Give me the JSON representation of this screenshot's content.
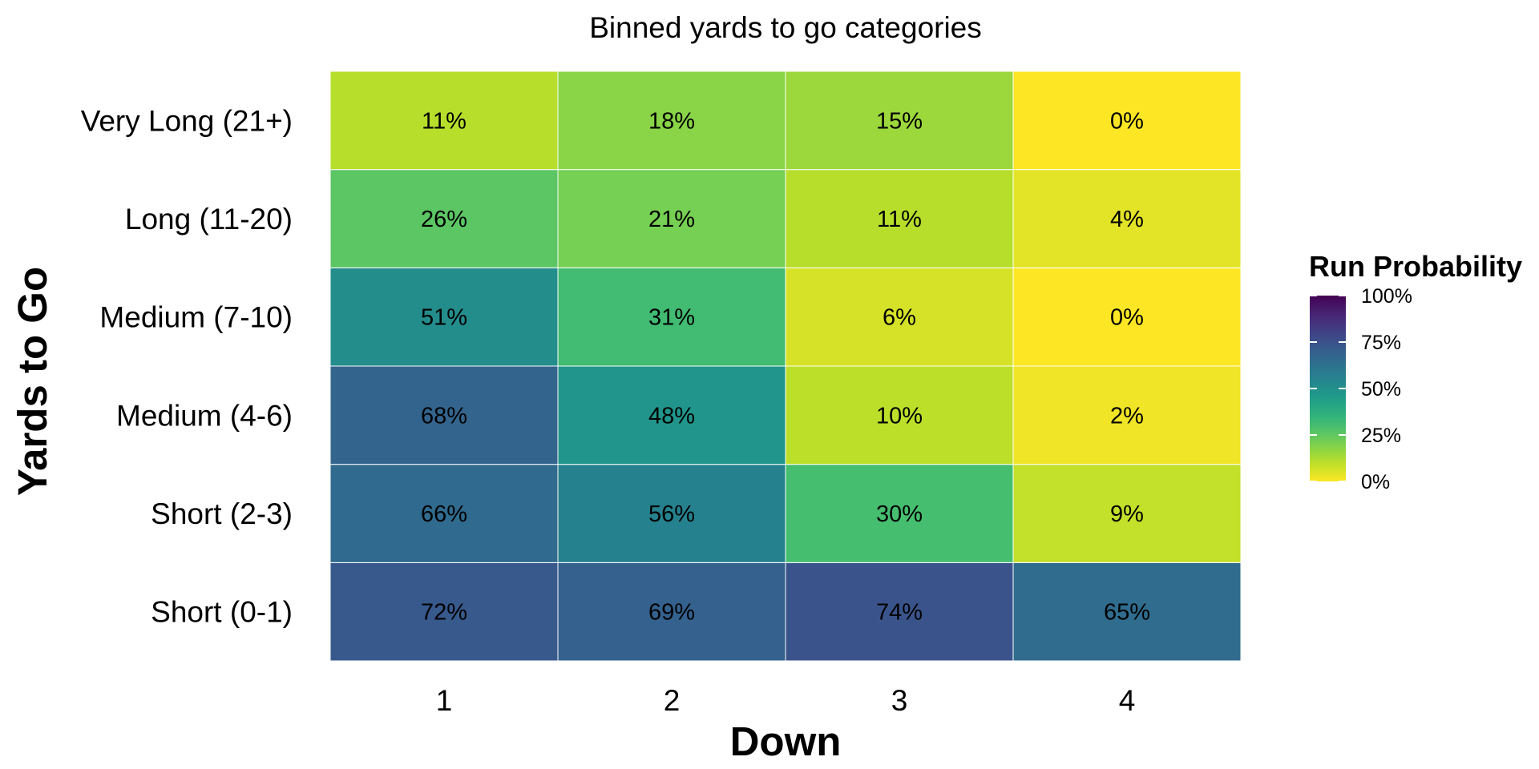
{
  "chart_data": {
    "type": "heatmap",
    "title": "Binned yards to go categories",
    "xlabel": "Down",
    "ylabel": "Yards to Go",
    "x_categories": [
      "1",
      "2",
      "3",
      "4"
    ],
    "y_categories": [
      "Short (0-1)",
      "Short (2-3)",
      "Medium (4-6)",
      "Medium (7-10)",
      "Long (11-20)",
      "Very Long (21+)"
    ],
    "values": [
      [
        72,
        69,
        74,
        65
      ],
      [
        66,
        56,
        30,
        9
      ],
      [
        68,
        48,
        10,
        2
      ],
      [
        51,
        31,
        6,
        0
      ],
      [
        26,
        21,
        11,
        4
      ],
      [
        11,
        18,
        15,
        0
      ]
    ],
    "value_suffix": "%",
    "colorscale": "viridis",
    "color_range": [
      0,
      100
    ],
    "colorscale_direction": "reversed (0% yellow, 100% dark purple)",
    "grid": false,
    "legend": {
      "title": "Run Probability",
      "placement": "right",
      "ticks": [
        "0%",
        "25%",
        "50%",
        "75%",
        "100%"
      ],
      "tick_values": [
        0,
        25,
        50,
        75,
        100
      ]
    }
  }
}
